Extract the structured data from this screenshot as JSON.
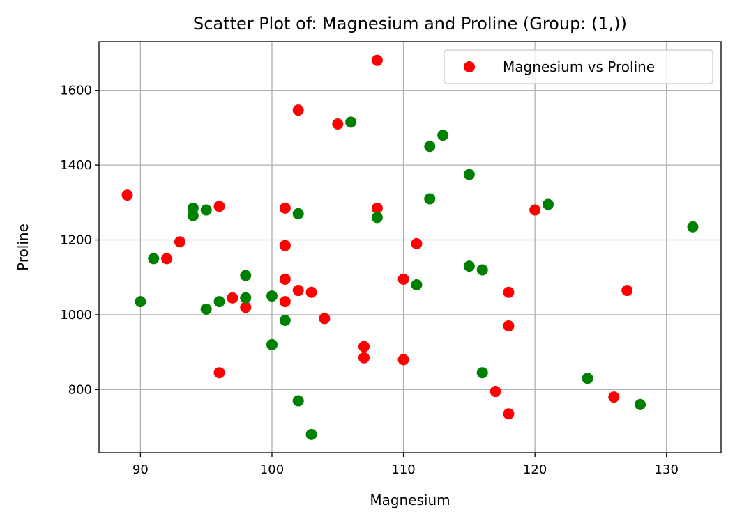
{
  "chart_data": {
    "type": "scatter",
    "title": "Scatter Plot of: Magnesium and Proline (Group: (1,))",
    "xlabel": "Magnesium",
    "ylabel": "Proline",
    "xlim": [
      86.85,
      134.15
    ],
    "ylim": [
      631.25,
      1729.75
    ],
    "xticks": [
      90,
      100,
      110,
      120,
      130
    ],
    "yticks": [
      800,
      1000,
      1200,
      1400,
      1600
    ],
    "grid": true,
    "legend": {
      "position": "top-right",
      "entries": [
        "Magnesium vs Proline"
      ]
    },
    "series": [
      {
        "name": "Magnesium vs Proline",
        "color": "#ff0000",
        "points": [
          [
            89,
            1320
          ],
          [
            92,
            1150
          ],
          [
            93,
            1195
          ],
          [
            96,
            1290
          ],
          [
            96,
            845
          ],
          [
            97,
            1045
          ],
          [
            98,
            1020
          ],
          [
            101,
            1285
          ],
          [
            101,
            1185
          ],
          [
            101,
            1095
          ],
          [
            101,
            1035
          ],
          [
            102,
            1547
          ],
          [
            102,
            1065
          ],
          [
            103,
            1060
          ],
          [
            104,
            990
          ],
          [
            105,
            1510
          ],
          [
            107,
            915
          ],
          [
            107,
            885
          ],
          [
            108,
            1680
          ],
          [
            108,
            1285
          ],
          [
            110,
            1095
          ],
          [
            110,
            880
          ],
          [
            111,
            1190
          ],
          [
            117,
            795
          ],
          [
            118,
            1060
          ],
          [
            118,
            970
          ],
          [
            118,
            735
          ],
          [
            120,
            1280
          ],
          [
            126,
            780
          ],
          [
            127,
            1065
          ]
        ]
      },
      {
        "color": "#008000",
        "points": [
          [
            90,
            1035
          ],
          [
            91,
            1150
          ],
          [
            94,
            1285
          ],
          [
            94,
            1265
          ],
          [
            95,
            1280
          ],
          [
            95,
            1015
          ],
          [
            96,
            1035
          ],
          [
            98,
            1105
          ],
          [
            98,
            1045
          ],
          [
            100,
            1050
          ],
          [
            100,
            920
          ],
          [
            101,
            985
          ],
          [
            102,
            1270
          ],
          [
            102,
            770
          ],
          [
            103,
            680
          ],
          [
            106,
            1515
          ],
          [
            108,
            1260
          ],
          [
            111,
            1080
          ],
          [
            112,
            1450
          ],
          [
            112,
            1310
          ],
          [
            113,
            1480
          ],
          [
            115,
            1375
          ],
          [
            115,
            1130
          ],
          [
            116,
            1120
          ],
          [
            116,
            845
          ],
          [
            121,
            1295
          ],
          [
            124,
            830
          ],
          [
            128,
            760
          ],
          [
            132,
            1235
          ]
        ]
      }
    ]
  }
}
